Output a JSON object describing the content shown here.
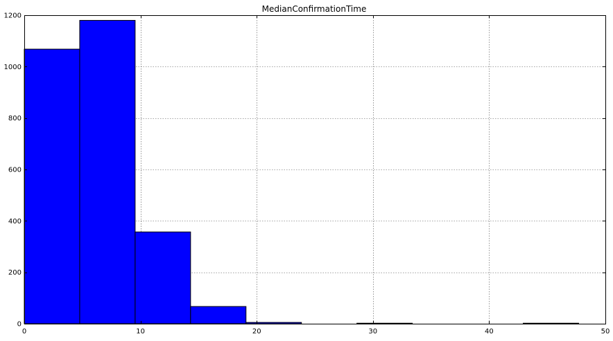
{
  "chart_data": {
    "type": "bar",
    "title": "MedianConfirmationTime",
    "xlabel": "",
    "ylabel": "",
    "xlim": [
      0,
      50
    ],
    "ylim": [
      0,
      1200
    ],
    "xticks": [
      0,
      10,
      20,
      30,
      40,
      50
    ],
    "yticks": [
      0,
      200,
      400,
      600,
      800,
      1000,
      1200
    ],
    "grid": true,
    "bar_color": "#0000ff",
    "bins": [
      {
        "x0": 0.0,
        "x1": 4.77,
        "value": 1068
      },
      {
        "x0": 4.77,
        "x1": 9.54,
        "value": 1180
      },
      {
        "x0": 9.54,
        "x1": 14.31,
        "value": 357
      },
      {
        "x0": 14.31,
        "x1": 19.08,
        "value": 67
      },
      {
        "x0": 19.08,
        "x1": 23.85,
        "value": 5
      },
      {
        "x0": 23.85,
        "x1": 28.62,
        "value": 0
      },
      {
        "x0": 28.62,
        "x1": 33.39,
        "value": 2
      },
      {
        "x0": 33.39,
        "x1": 38.16,
        "value": 0
      },
      {
        "x0": 38.16,
        "x1": 42.93,
        "value": 0
      },
      {
        "x0": 42.93,
        "x1": 47.7,
        "value": 2
      }
    ]
  }
}
